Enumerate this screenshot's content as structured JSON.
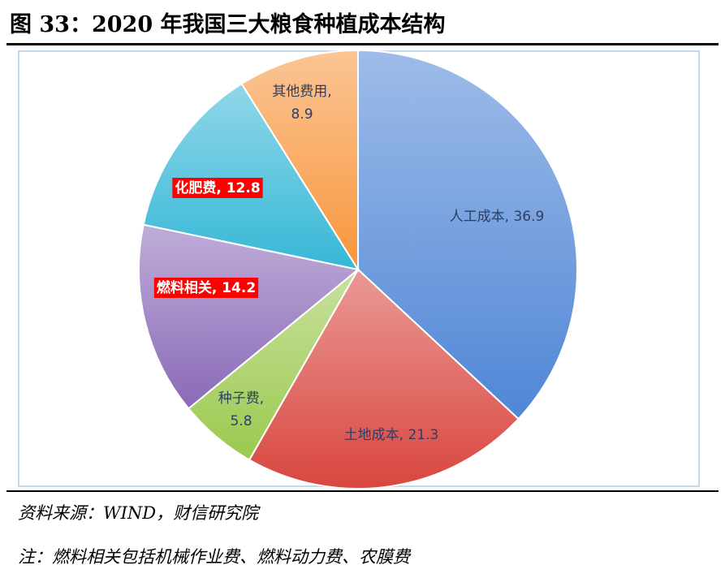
{
  "title": "图 33：2020 年我国三大粮食种植成本结构",
  "source": "资料来源：WIND，财信研究院",
  "note": "注：燃料相关包括机械作业费、燃料动力费、农膜费",
  "chart_data": {
    "type": "pie",
    "start_angle_deg": 0,
    "direction": "clockwise",
    "slices": [
      {
        "label": "人工成本",
        "value": 36.9,
        "color": "#4f86d6",
        "highlight": false
      },
      {
        "label": "土地成本",
        "value": 21.3,
        "color": "#d9463f",
        "highlight": false
      },
      {
        "label": "种子费",
        "value": 5.8,
        "color": "#9bc94e",
        "highlight": false
      },
      {
        "label": "燃料相关",
        "value": 14.2,
        "color": "#8a6ab8",
        "highlight": true
      },
      {
        "label": "化肥费",
        "value": 12.8,
        "color": "#35b7d6",
        "highlight": true
      },
      {
        "label": "其他费用",
        "value": 8.9,
        "color": "#f8963c",
        "highlight": false
      }
    ]
  }
}
